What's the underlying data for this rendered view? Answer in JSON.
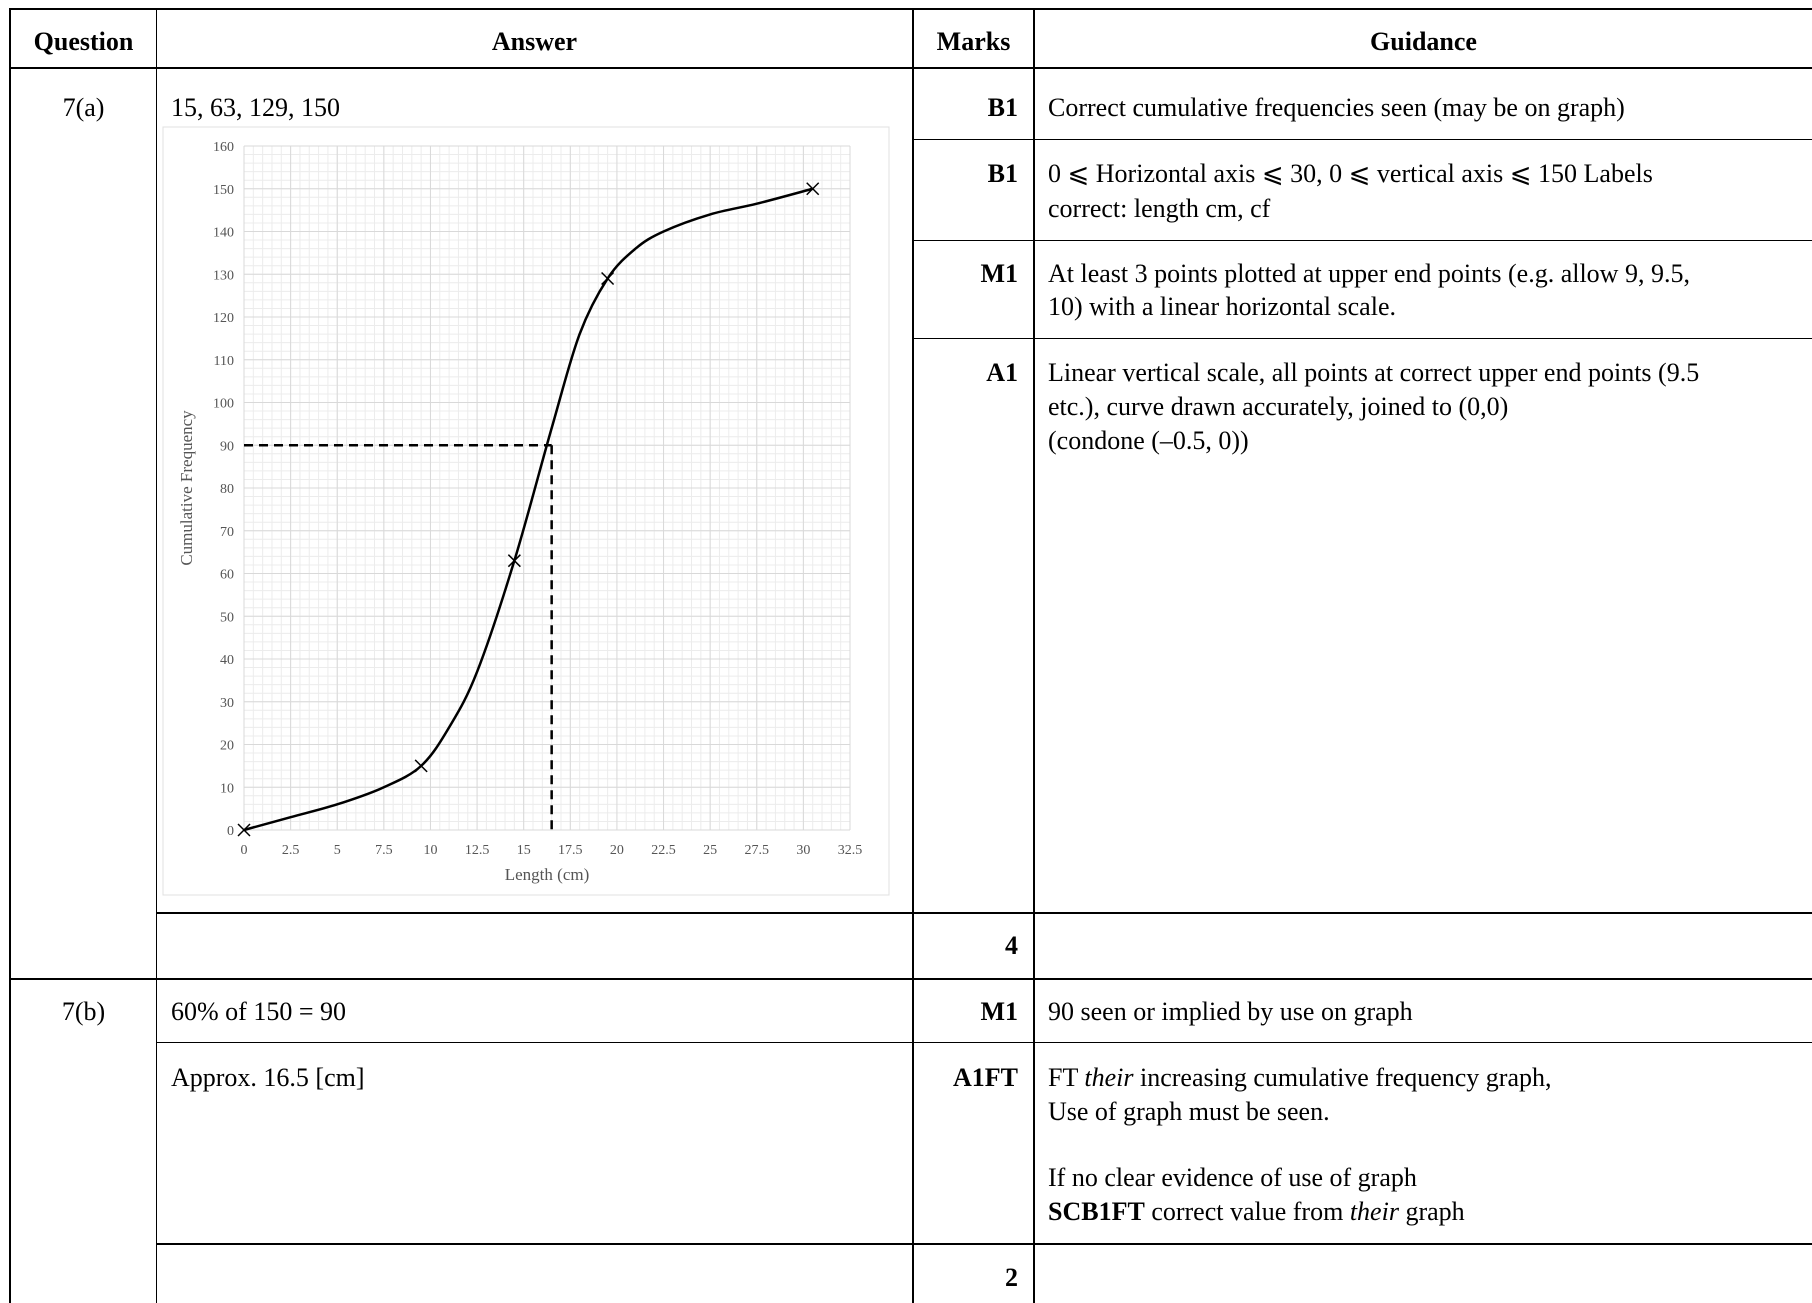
{
  "header": {
    "question": "Question",
    "answer": "Answer",
    "marks": "Marks",
    "guidance": "Guidance"
  },
  "q7a": {
    "question": "7(a)",
    "answer_text": "15, 63, 129, 150",
    "rows": [
      {
        "mark": "B1",
        "guidance": [
          "Correct cumulative frequencies seen (may be on graph)"
        ]
      },
      {
        "mark": "B1",
        "guidance": [
          "0 ⩽ Horizontal axis ⩽ 30, 0 ⩽ vertical axis ⩽ 150 Labels",
          "correct: length cm, cf"
        ]
      },
      {
        "mark": "M1",
        "guidance": [
          "At least 3 points plotted at upper end points (e.g. allow 9, 9.5,",
          "10) with a linear horizontal scale."
        ]
      },
      {
        "mark": "A1",
        "guidance": [
          "Linear vertical scale, all points at correct upper end points (9.5",
          "etc.), curve drawn accurately, joined to (0,0)",
          "(condone (–0.5, 0))"
        ]
      }
    ],
    "total": "4"
  },
  "q7b": {
    "question": "7(b)",
    "rows": [
      {
        "answer": "60% of 150 = 90",
        "mark": "M1",
        "guidance": [
          "90 seen or implied by use on graph"
        ]
      },
      {
        "answer": "Approx. 16.5 [cm]",
        "mark": "A1FT",
        "guidance_line1_pre": "FT ",
        "guidance_line1_italic": "their",
        "guidance_line1_post": " increasing cumulative frequency graph,",
        "guidance_line2": "Use of graph must be seen.",
        "guidance_line3": "If no clear evidence of use of graph",
        "guidance_line4_bold": "SCB1FT",
        "guidance_line4_mid": " correct value from ",
        "guidance_line4_italic": "their",
        "guidance_line4_post": " graph"
      }
    ],
    "total": "2"
  },
  "chart_data": {
    "type": "line",
    "xlabel": "Length (cm)",
    "ylabel": "Cumulative Frequency",
    "xlim": [
      0,
      32.5
    ],
    "ylim": [
      0,
      160
    ],
    "x_ticks": [
      "0",
      "2.5",
      "5",
      "7.5",
      "10",
      "12.5",
      "15",
      "17.5",
      "20",
      "22.5",
      "25",
      "27.5",
      "30",
      "32.5"
    ],
    "y_ticks": [
      "0",
      "10",
      "20",
      "30",
      "40",
      "50",
      "60",
      "70",
      "80",
      "90",
      "100",
      "110",
      "120",
      "130",
      "140",
      "150",
      "160"
    ],
    "grid": true,
    "points": [
      {
        "x": 0,
        "y": 0
      },
      {
        "x": 9.5,
        "y": 15
      },
      {
        "x": 14.5,
        "y": 63
      },
      {
        "x": 19.5,
        "y": 129
      },
      {
        "x": 30.5,
        "y": 150
      }
    ],
    "curve": [
      [
        0,
        0
      ],
      [
        2.5,
        3
      ],
      [
        5,
        6
      ],
      [
        7.5,
        10
      ],
      [
        9.5,
        15
      ],
      [
        11,
        24
      ],
      [
        12.5,
        37
      ],
      [
        14.5,
        63
      ],
      [
        16.5,
        94
      ],
      [
        18,
        116
      ],
      [
        19.5,
        129
      ],
      [
        21,
        136
      ],
      [
        22.5,
        140
      ],
      [
        25,
        144
      ],
      [
        27.5,
        146.5
      ],
      [
        30.5,
        150
      ]
    ],
    "reading": {
      "y": 90,
      "x": 16.5
    },
    "colors": {
      "curve": "#000000",
      "grid": "#d9d9d9",
      "text": "#555555"
    }
  }
}
